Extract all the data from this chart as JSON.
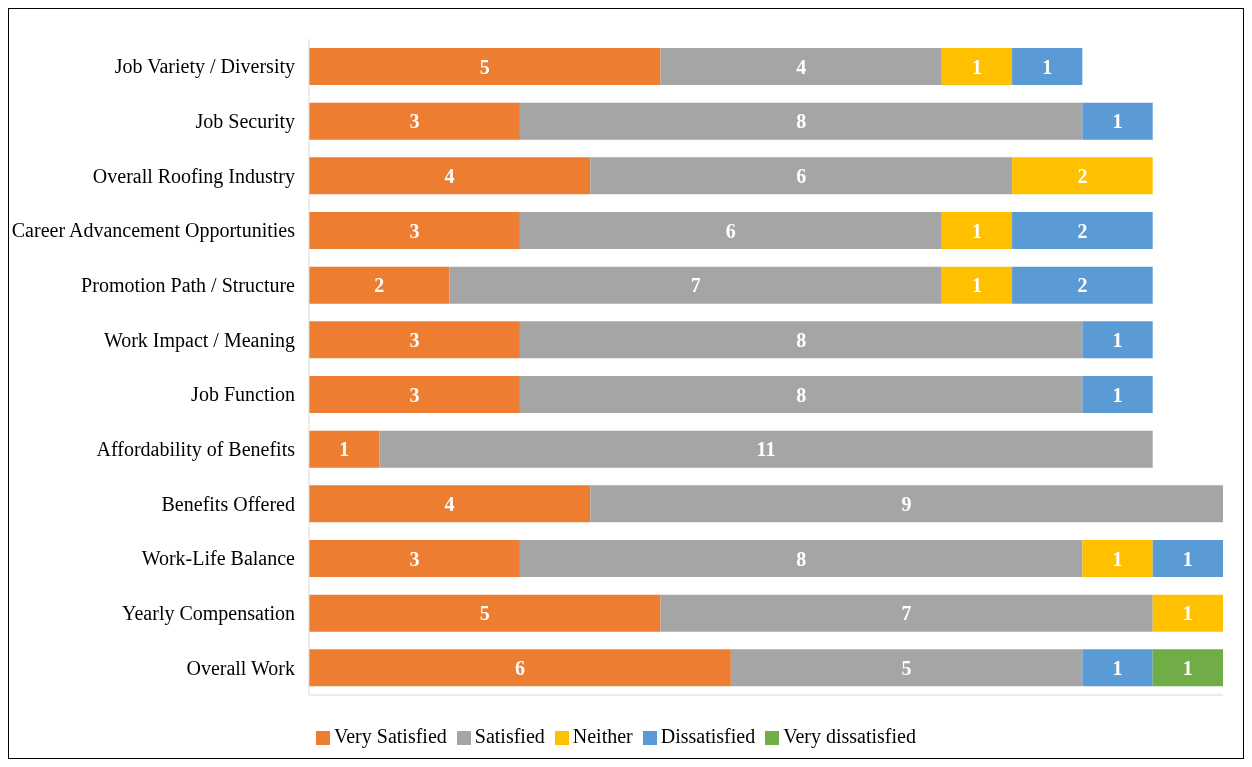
{
  "chart_data": {
    "type": "bar",
    "orientation": "horizontal",
    "stacked": true,
    "data_labels": true,
    "legend": "bottom",
    "xlim": [
      0,
      13
    ],
    "categories": [
      "Job Variety / Diversity",
      "Job Security",
      "Overall Roofing Industry",
      "Career Advancement Opportunities",
      "Promotion Path / Structure",
      "Work Impact / Meaning",
      "Job Function",
      "Affordability of Benefits",
      "Benefits Offered",
      "Work-Life Balance",
      "Yearly Compensation",
      "Overall Work"
    ],
    "series": [
      {
        "name": "Very Satisfied",
        "color": "#ed7d31",
        "values": [
          5,
          3,
          4,
          3,
          2,
          3,
          3,
          1,
          4,
          3,
          5,
          6
        ]
      },
      {
        "name": "Satisfied",
        "color": "#a5a5a5",
        "values": [
          4,
          8,
          6,
          6,
          7,
          8,
          8,
          11,
          9,
          8,
          7,
          5
        ]
      },
      {
        "name": "Neither",
        "color": "#ffc000",
        "values": [
          1,
          null,
          2,
          1,
          1,
          null,
          null,
          null,
          null,
          1,
          1,
          null
        ]
      },
      {
        "name": "Dissatisfied",
        "color": "#5b9bd5",
        "values": [
          1,
          1,
          null,
          2,
          2,
          1,
          1,
          null,
          null,
          1,
          null,
          1
        ]
      },
      {
        "name": "Very dissatisfied",
        "color": "#70ad47",
        "values": [
          null,
          null,
          null,
          null,
          null,
          null,
          null,
          null,
          null,
          null,
          null,
          1
        ]
      }
    ]
  }
}
